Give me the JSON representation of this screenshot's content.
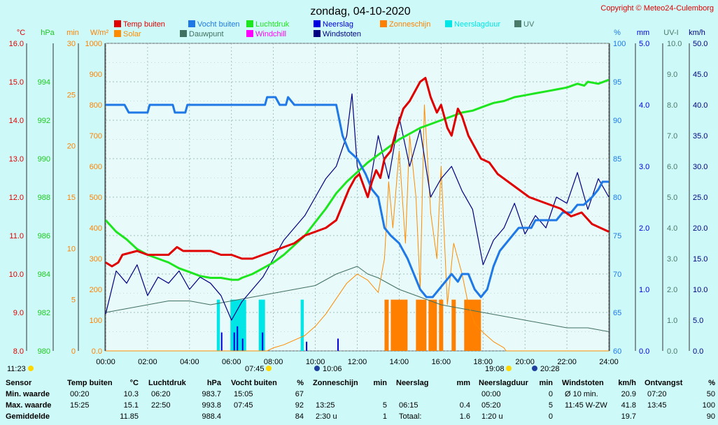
{
  "title": "zondag, 04-10-2020",
  "copyright": "Copyright © Meteo24-Culemborg",
  "legend": [
    {
      "label": "Temp buiten",
      "color": "#e00000"
    },
    {
      "label": "Vocht buiten",
      "color": "#1e78e6"
    },
    {
      "label": "Luchtdruk",
      "color": "#1ee61e"
    },
    {
      "label": "Neerslag",
      "color": "#0000dc"
    },
    {
      "label": "Zonneschijn",
      "color": "#ff8000"
    },
    {
      "label": "Neerslagduur",
      "color": "#00e6e6"
    },
    {
      "label": "UV",
      "color": "#4a7a6a"
    },
    {
      "label": "Solar",
      "color": "#ff8c00"
    },
    {
      "label": "Dauwpunt",
      "color": "#407060"
    },
    {
      "label": "Windchill",
      "color": "#ff00ff"
    },
    {
      "label": "Windstoten",
      "color": "#000080"
    }
  ],
  "axes": {
    "temp": {
      "unit": "°C",
      "ticks": [
        "16.0",
        "15.0",
        "14.0",
        "13.0",
        "12.0",
        "11.0",
        "10.0",
        "9.0",
        "8.0"
      ],
      "color": "#e00000"
    },
    "pressure": {
      "unit": "hPa",
      "ticks": [
        "994",
        "992",
        "990",
        "988",
        "986",
        "984",
        "982",
        "980"
      ],
      "color": "#1ec81e"
    },
    "sunmin": {
      "unit": "min",
      "ticks": [
        "30",
        "25",
        "20",
        "15",
        "10",
        "5",
        "0"
      ],
      "color": "#ff8000"
    },
    "solar": {
      "unit": "W/m²",
      "ticks": [
        "1000",
        "900",
        "800",
        "700",
        "600",
        "500",
        "400",
        "300",
        "200",
        "100",
        "0.0"
      ],
      "color": "#ff8000"
    },
    "humidity": {
      "unit": "%",
      "ticks": [
        "100",
        "95",
        "90",
        "85",
        "80",
        "75",
        "70",
        "65",
        "60"
      ],
      "color": "#1e78e6"
    },
    "rain": {
      "unit": "mm",
      "ticks": [
        "5.0",
        "4.0",
        "3.0",
        "2.0",
        "1.0",
        "0.0"
      ],
      "color": "#0000dc"
    },
    "uv": {
      "unit": "UV-I",
      "ticks": [
        "10.0",
        "9.0",
        "8.0",
        "7.0",
        "6.0",
        "5.0",
        "4.0",
        "3.0",
        "2.0",
        "1.0",
        "0.0"
      ],
      "color": "#4a7a6a"
    },
    "wind": {
      "unit": "km/h",
      "ticks": [
        "50.0",
        "45.0",
        "40.0",
        "35.0",
        "30.0",
        "25.0",
        "20.0",
        "15.0",
        "10.0",
        "5.0",
        "0.0"
      ],
      "color": "#000080"
    },
    "x": {
      "ticks": [
        "00:00",
        "02:00",
        "04:00",
        "06:00",
        "08:00",
        "10:00",
        "12:00",
        "14:00",
        "16:00",
        "18:00",
        "20:00",
        "22:00",
        "24:00"
      ]
    }
  },
  "sun_markers": {
    "sunrise_label": "07:45",
    "sunset_label": "19:08",
    "daylength_label": "11:23",
    "moonrise_label": "10:06",
    "moonset_label": "20:28"
  },
  "chart_data": {
    "type": "line",
    "x_unit": "hour",
    "xlim": [
      0,
      24
    ],
    "series": [
      {
        "name": "Temp buiten",
        "axis": "temp",
        "ylim": [
          8,
          16
        ],
        "x": [
          0,
          0.3,
          0.6,
          0.8,
          1.5,
          2.0,
          3.0,
          3.4,
          3.7,
          4.0,
          4.5,
          5.0,
          5.5,
          6.0,
          6.5,
          7.0,
          7.5,
          8.0,
          8.5,
          9.0,
          9.5,
          10.0,
          10.5,
          11.0,
          11.3,
          11.6,
          11.9,
          12.1,
          12.3,
          12.5,
          12.7,
          12.9,
          13.1,
          13.3,
          13.6,
          13.9,
          14.2,
          14.5,
          14.8,
          15.0,
          15.25,
          15.5,
          15.8,
          16.0,
          16.3,
          16.5,
          16.8,
          17.0,
          17.3,
          17.6,
          17.9,
          18.3,
          18.7,
          19.2,
          19.7,
          20.2,
          20.7,
          21.2,
          21.7,
          22.2,
          22.7,
          23.2,
          23.6,
          24.0
        ],
        "values": [
          10.3,
          10.2,
          10.3,
          10.5,
          10.6,
          10.5,
          10.5,
          10.7,
          10.6,
          10.6,
          10.6,
          10.6,
          10.5,
          10.5,
          10.4,
          10.4,
          10.5,
          10.6,
          10.7,
          10.8,
          11.0,
          11.1,
          11.2,
          11.4,
          11.8,
          12.2,
          12.5,
          12.6,
          12.3,
          12.0,
          12.4,
          12.7,
          12.5,
          13.0,
          13.2,
          13.8,
          14.3,
          14.5,
          14.8,
          15.0,
          15.1,
          14.6,
          14.2,
          14.4,
          13.8,
          13.6,
          14.3,
          14.1,
          13.6,
          13.3,
          13.0,
          12.9,
          12.6,
          12.4,
          12.2,
          12.0,
          11.9,
          11.8,
          11.7,
          11.5,
          11.6,
          11.3,
          11.2,
          11.1
        ]
      },
      {
        "name": "Vocht buiten",
        "axis": "humidity",
        "ylim": [
          60,
          100
        ],
        "x": [
          0,
          0.9,
          1.1,
          1.3,
          2.0,
          2.1,
          3.2,
          3.3,
          3.8,
          3.9,
          7.6,
          7.7,
          8.1,
          8.3,
          8.6,
          8.7,
          9.0,
          9.5,
          10.0,
          10.5,
          11.0,
          11.3,
          11.6,
          12.0,
          12.4,
          12.7,
          13.0,
          13.3,
          13.6,
          14.0,
          14.4,
          14.7,
          15.0,
          15.3,
          15.6,
          15.9,
          16.2,
          16.5,
          16.8,
          17.0,
          17.3,
          17.6,
          17.9,
          18.2,
          18.5,
          18.8,
          19.1,
          19.4,
          19.7,
          20.0,
          20.3,
          20.5,
          21.0,
          21.5,
          21.8,
          22.2,
          22.5,
          22.8,
          23.2,
          23.5,
          23.7,
          24.0
        ],
        "values": [
          92,
          92,
          91,
          91,
          91,
          92,
          92,
          91,
          91,
          92,
          92,
          93,
          93,
          92,
          92,
          93,
          92,
          92,
          92,
          92,
          92,
          88,
          86,
          85,
          83,
          81,
          80,
          76,
          75,
          74,
          72,
          70,
          68,
          67,
          67,
          68,
          69,
          70,
          69,
          70,
          70,
          68,
          67,
          68,
          71,
          73,
          74,
          75,
          76,
          76,
          76,
          77,
          77,
          77,
          78,
          78,
          79,
          79,
          80,
          81,
          82,
          82
        ]
      },
      {
        "name": "Luchtdruk",
        "axis": "pressure",
        "ylim": [
          980,
          996
        ],
        "x": [
          0,
          0.5,
          1.0,
          1.5,
          2.0,
          2.5,
          3.0,
          3.5,
          4.0,
          4.5,
          5.0,
          5.5,
          6.0,
          6.33,
          6.5,
          7.0,
          7.5,
          8.0,
          8.5,
          9.0,
          9.5,
          10.0,
          10.5,
          11.0,
          11.5,
          12.0,
          12.5,
          13.0,
          13.5,
          14.0,
          14.5,
          15.0,
          15.5,
          16.0,
          16.5,
          17.0,
          17.5,
          18.0,
          18.5,
          19.0,
          19.5,
          20.0,
          20.5,
          21.0,
          21.5,
          22.0,
          22.5,
          22.83,
          23.0,
          23.5,
          24.0
        ],
        "values": [
          986.8,
          986.2,
          985.8,
          985.3,
          985.0,
          984.8,
          984.6,
          984.3,
          984.1,
          983.9,
          983.8,
          983.8,
          983.7,
          983.7,
          983.8,
          984.0,
          984.3,
          984.6,
          985.0,
          985.5,
          986.0,
          986.7,
          987.4,
          988.2,
          988.8,
          989.3,
          989.8,
          990.2,
          990.6,
          991.0,
          991.3,
          991.6,
          991.8,
          992.0,
          992.2,
          992.4,
          992.5,
          992.7,
          992.9,
          993.0,
          993.2,
          993.3,
          993.4,
          993.5,
          993.6,
          993.7,
          993.9,
          993.8,
          994.0,
          993.9,
          994.1
        ]
      },
      {
        "name": "Dauwpunt",
        "axis": "temp",
        "ylim": [
          8,
          16
        ],
        "x": [
          0,
          1,
          2,
          3,
          4,
          5,
          6,
          7,
          8,
          9,
          10,
          11,
          12,
          12.5,
          13,
          14,
          15,
          16,
          17,
          18,
          19,
          20,
          21,
          22,
          23,
          24
        ],
        "values": [
          9.0,
          9.1,
          9.2,
          9.3,
          9.3,
          9.2,
          9.3,
          9.4,
          9.5,
          9.6,
          9.7,
          10.0,
          10.2,
          10.0,
          9.9,
          9.6,
          9.4,
          9.2,
          9.1,
          9.0,
          8.9,
          8.8,
          8.7,
          8.6,
          8.6,
          8.5
        ]
      },
      {
        "name": "Solar",
        "axis": "solar",
        "ylim": [
          0,
          1000
        ],
        "x": [
          0,
          7.7,
          8.0,
          8.5,
          9.0,
          9.5,
          10.0,
          10.5,
          11.0,
          11.5,
          12.0,
          12.5,
          13.0,
          13.3,
          13.5,
          13.7,
          14.0,
          14.3,
          14.5,
          14.8,
          15.0,
          15.2,
          15.5,
          15.8,
          16.0,
          16.3,
          16.6,
          17.0,
          17.3,
          17.6,
          18.0,
          18.5,
          19.0,
          19.1,
          24.0
        ],
        "values": [
          0,
          0,
          10,
          20,
          35,
          50,
          80,
          120,
          170,
          220,
          250,
          230,
          190,
          300,
          550,
          400,
          650,
          350,
          700,
          500,
          200,
          800,
          450,
          300,
          600,
          150,
          350,
          250,
          150,
          90,
          60,
          30,
          10,
          0,
          0
        ]
      },
      {
        "name": "Windstoten",
        "axis": "wind",
        "ylim": [
          0,
          50
        ],
        "x": [
          0,
          0.5,
          1,
          1.5,
          2,
          2.5,
          3,
          3.5,
          4,
          4.5,
          5,
          5.5,
          6,
          6.5,
          7,
          7.5,
          8,
          8.5,
          9,
          9.5,
          10,
          10.5,
          11,
          11.5,
          11.75,
          12,
          12.5,
          13,
          13.5,
          14,
          14.5,
          15,
          15.5,
          16,
          16.5,
          17,
          17.5,
          18,
          18.5,
          19,
          19.5,
          20,
          20.5,
          21,
          21.5,
          22,
          22.5,
          23,
          23.5,
          24
        ],
        "values": [
          6,
          13,
          11,
          14,
          9,
          12,
          11,
          13,
          10,
          12,
          11,
          9,
          5,
          8,
          10,
          12,
          15,
          18,
          20,
          22,
          25,
          28,
          30,
          35,
          41.8,
          30,
          25,
          35,
          28,
          38,
          30,
          36,
          25,
          28,
          30,
          26,
          23,
          14,
          18,
          20,
          24,
          19,
          22,
          20,
          25,
          24,
          29,
          23,
          28,
          25
        ]
      }
    ],
    "bars": [
      {
        "name": "Zonneschijn",
        "axis": "sunmin",
        "ylim": [
          0,
          30
        ],
        "intervals": [
          [
            13.3,
            13.5,
            5
          ],
          [
            13.6,
            14.4,
            5
          ],
          [
            14.8,
            15.3,
            5
          ],
          [
            15.4,
            15.8,
            5
          ],
          [
            15.9,
            16.1,
            5
          ],
          [
            16.5,
            16.7,
            5
          ],
          [
            17.1,
            17.9,
            5
          ]
        ]
      },
      {
        "name": "Neerslagduur",
        "axis": "humidity_dur",
        "ylim": [
          0,
          30
        ],
        "intervals": [
          [
            5.3,
            5.45,
            5
          ],
          [
            5.95,
            6.7,
            5
          ],
          [
            7.3,
            7.6,
            5
          ],
          [
            9.3,
            9.45,
            5
          ]
        ]
      },
      {
        "name": "Neerslag",
        "axis": "rain",
        "ylim": [
          0,
          5
        ],
        "intervals": [
          [
            5.5,
            5.55,
            0.3
          ],
          [
            6.1,
            6.15,
            0.3
          ],
          [
            6.25,
            6.3,
            0.4
          ],
          [
            6.5,
            6.55,
            0.2
          ],
          [
            7.45,
            7.5,
            0.3
          ],
          [
            9.55,
            9.6,
            0.15
          ],
          [
            11.05,
            11.1,
            0.2
          ]
        ]
      }
    ]
  },
  "stats": {
    "headers": [
      {
        "label": "Sensor"
      },
      {
        "label": "Temp buiten",
        "unit": "°C"
      },
      {
        "label": "Luchtdruk",
        "unit": "hPa"
      },
      {
        "label": "Vocht buiten",
        "unit": "%"
      },
      {
        "label": "Zonneschijn",
        "unit": "min"
      },
      {
        "label": "Neerslag",
        "unit": "mm"
      },
      {
        "label": "Neerslagduur",
        "unit": "min"
      },
      {
        "label": "Windstoten",
        "unit": "km/h"
      },
      {
        "label": "Ontvangst",
        "unit": "%"
      }
    ],
    "rows": [
      {
        "label": "Min. waarde",
        "cells": [
          [
            "00:20",
            "10.3"
          ],
          [
            "06:20",
            "983.7"
          ],
          [
            "15:05",
            "67"
          ],
          [
            "",
            ""
          ],
          [
            "",
            ""
          ],
          [
            "00:00",
            "0"
          ],
          [
            "Ø 10 min.",
            "20.9"
          ],
          [
            "07:20",
            "50"
          ]
        ]
      },
      {
        "label": "Max. waarde",
        "cells": [
          [
            "15:25",
            "15.1"
          ],
          [
            "22:50",
            "993.8"
          ],
          [
            "07:45",
            "92"
          ],
          [
            "13:25",
            "5"
          ],
          [
            "06:15",
            "0.4"
          ],
          [
            "05:20",
            "5"
          ],
          [
            "11:45  W-ZW",
            "41.8"
          ],
          [
            "13:45",
            "100"
          ]
        ]
      },
      {
        "label": "Gemiddelde",
        "cells": [
          [
            "",
            "11.85"
          ],
          [
            "",
            "988.4"
          ],
          [
            "",
            "84"
          ],
          [
            "2:30 u",
            "1"
          ],
          [
            "Totaal:",
            "1.6"
          ],
          [
            "1:20 u",
            "0"
          ],
          [
            "",
            "19.7"
          ],
          [
            "",
            "90"
          ]
        ]
      }
    ]
  }
}
